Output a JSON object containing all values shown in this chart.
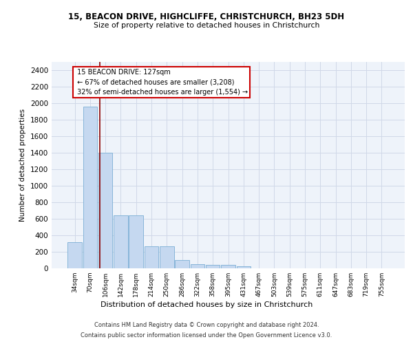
{
  "title1": "15, BEACON DRIVE, HIGHCLIFFE, CHRISTCHURCH, BH23 5DH",
  "title2": "Size of property relative to detached houses in Christchurch",
  "xlabel": "Distribution of detached houses by size in Christchurch",
  "ylabel": "Number of detached properties",
  "footnote1": "Contains HM Land Registry data © Crown copyright and database right 2024.",
  "footnote2": "Contains public sector information licensed under the Open Government Licence v3.0.",
  "bar_labels": [
    "34sqm",
    "70sqm",
    "106sqm",
    "142sqm",
    "178sqm",
    "214sqm",
    "250sqm",
    "286sqm",
    "322sqm",
    "358sqm",
    "395sqm",
    "431sqm",
    "467sqm",
    "503sqm",
    "539sqm",
    "575sqm",
    "611sqm",
    "647sqm",
    "683sqm",
    "719sqm",
    "755sqm"
  ],
  "bar_values": [
    320,
    1960,
    1400,
    640,
    640,
    270,
    270,
    100,
    50,
    45,
    40,
    25,
    0,
    0,
    0,
    0,
    0,
    0,
    0,
    0,
    0
  ],
  "bar_color": "#c5d8f0",
  "bar_edge_color": "#7aadd4",
  "ylim": [
    0,
    2500
  ],
  "yticks": [
    0,
    200,
    400,
    600,
    800,
    1000,
    1200,
    1400,
    1600,
    1800,
    2000,
    2200,
    2400
  ],
  "property_label": "15 BEACON DRIVE: 127sqm",
  "pct_smaller": 67,
  "n_smaller": 3208,
  "pct_larger": 32,
  "n_larger": 1554,
  "vline_x": 1.65,
  "grid_color": "#d0d8e8",
  "axes_bg_color": "#eef3fa"
}
